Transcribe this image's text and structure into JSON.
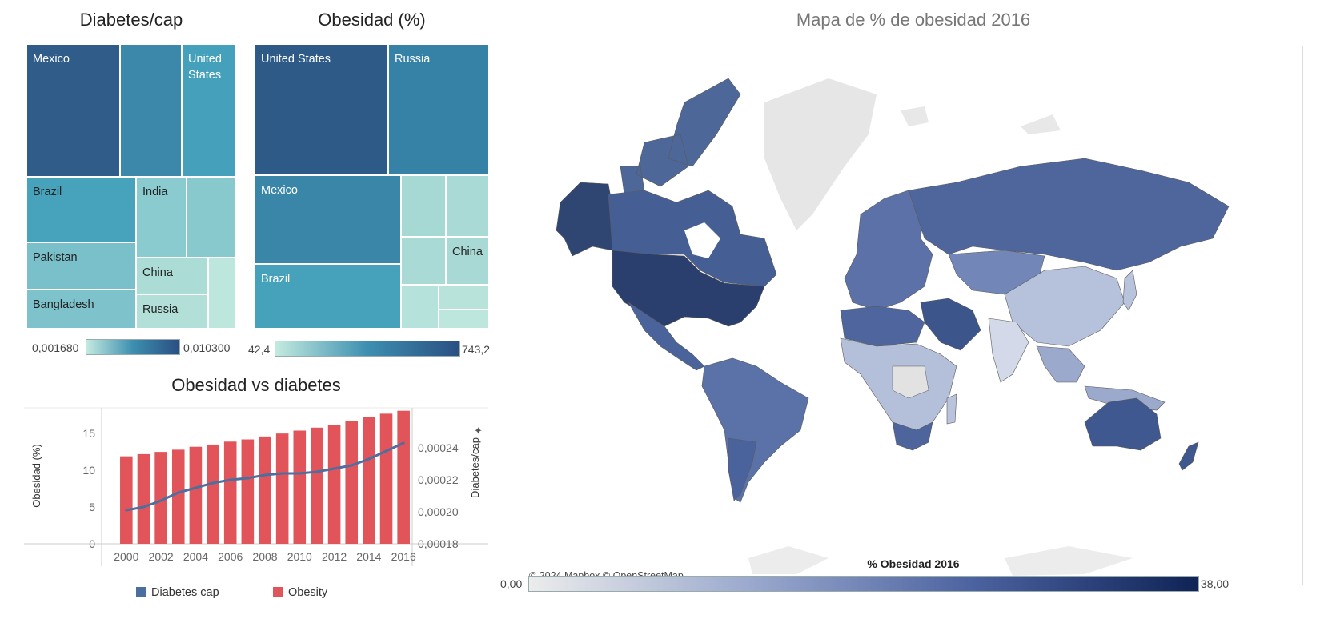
{
  "treemap_diabetes": {
    "title": "Diabetes/cap",
    "legend_min": "0,001680",
    "legend_max": "0,010300",
    "cells": [
      {
        "label": "Mexico",
        "color": "#2f5c88",
        "text": "#ffffff"
      },
      {
        "label": "",
        "color": "#3b88aa",
        "text": "#ffffff"
      },
      {
        "label": "United States",
        "color": "#45a0bb",
        "text": "#ffffff"
      },
      {
        "label": "Brazil",
        "color": "#47a2bc",
        "text": "#222222"
      },
      {
        "label": "India",
        "color": "#8acbd0",
        "text": "#222222"
      },
      {
        "label": "",
        "color": "#88c9ce",
        "text": "#222222"
      },
      {
        "label": "Pakistan",
        "color": "#79c0ca",
        "text": "#222222"
      },
      {
        "label": "China",
        "color": "#abddd6",
        "text": "#222222"
      },
      {
        "label": "",
        "color": "#bde6dc",
        "text": "#222222"
      },
      {
        "label": "Bangladesh",
        "color": "#7ec3cb",
        "text": "#222222"
      },
      {
        "label": "Russia",
        "color": "#b2e0d8",
        "text": "#222222"
      }
    ]
  },
  "treemap_obesity": {
    "title": "Obesidad (%)",
    "legend_min": "42,4",
    "legend_max": "743,2",
    "cells": [
      {
        "label": "United States",
        "color": "#2d5a87",
        "text": "#ffffff"
      },
      {
        "label": "Russia",
        "color": "#3682a6",
        "text": "#ffffff"
      },
      {
        "label": "Mexico",
        "color": "#3986a9",
        "text": "#ffffff"
      },
      {
        "label": "",
        "color": "#a6d8d4",
        "text": "#222222"
      },
      {
        "label": "",
        "color": "#a9dad5",
        "text": "#222222"
      },
      {
        "label": "",
        "color": "#aadad5",
        "text": "#222222"
      },
      {
        "label": "China",
        "color": "#a9d9d4",
        "text": "#222222"
      },
      {
        "label": "Brazil",
        "color": "#46a2bb",
        "text": "#ffffff"
      },
      {
        "label": "",
        "color": "#b5e2da",
        "text": "#222222"
      },
      {
        "label": "",
        "color": "#b8e3db",
        "text": "#222222"
      },
      {
        "label": "",
        "color": "#bde6dd",
        "text": "#222222"
      }
    ]
  },
  "combo": {
    "title": "Obesidad vs diabetes",
    "legend_line": "Diabetes cap",
    "legend_bar": "Obesity",
    "bar_color": "#e0545a",
    "line_color": "#4b6fa0"
  },
  "map": {
    "title": "Mapa de % de obesidad 2016",
    "attribution": "© 2024 Mapbox © OpenStreetMap",
    "legend_title": "% Obesidad 2016",
    "legend_min": "0,00",
    "legend_max": "38,00"
  },
  "chart_data": {
    "type": "bar",
    "title": "Obesidad vs diabetes",
    "categories": [
      "2000",
      "2001",
      "2002",
      "2003",
      "2004",
      "2005",
      "2006",
      "2007",
      "2008",
      "2009",
      "2010",
      "2011",
      "2012",
      "2013",
      "2014",
      "2015",
      "2016"
    ],
    "x_tick_labels": [
      "2000",
      "2002",
      "2004",
      "2006",
      "2008",
      "2010",
      "2012",
      "2014",
      "2016"
    ],
    "series": [
      {
        "name": "Obesity",
        "type": "bar",
        "axis": "left",
        "values": [
          11.9,
          12.2,
          12.5,
          12.8,
          13.2,
          13.5,
          13.9,
          14.2,
          14.6,
          15.0,
          15.4,
          15.8,
          16.2,
          16.7,
          17.2,
          17.7,
          18.1
        ]
      },
      {
        "name": "Diabetes cap",
        "type": "line",
        "axis": "right",
        "values": [
          0.000201,
          0.000203,
          0.000207,
          0.000212,
          0.000215,
          0.000218,
          0.00022,
          0.000221,
          0.000223,
          0.000224,
          0.000224,
          0.000225,
          0.000227,
          0.000229,
          0.000233,
          0.000238,
          0.000243
        ]
      }
    ],
    "ylabel": "Obesidad (%)",
    "y2label": "Diabetes/cap",
    "ylim": [
      0,
      18.5
    ],
    "yticks": [
      0,
      5,
      10,
      15
    ],
    "y2lim": [
      0.00018,
      0.000265
    ],
    "y2ticks": [
      "0,00018",
      "0,00020",
      "0,00022",
      "0,00024"
    ],
    "y2tick_values": [
      0.00018,
      0.0002,
      0.00022,
      0.00024
    ]
  }
}
